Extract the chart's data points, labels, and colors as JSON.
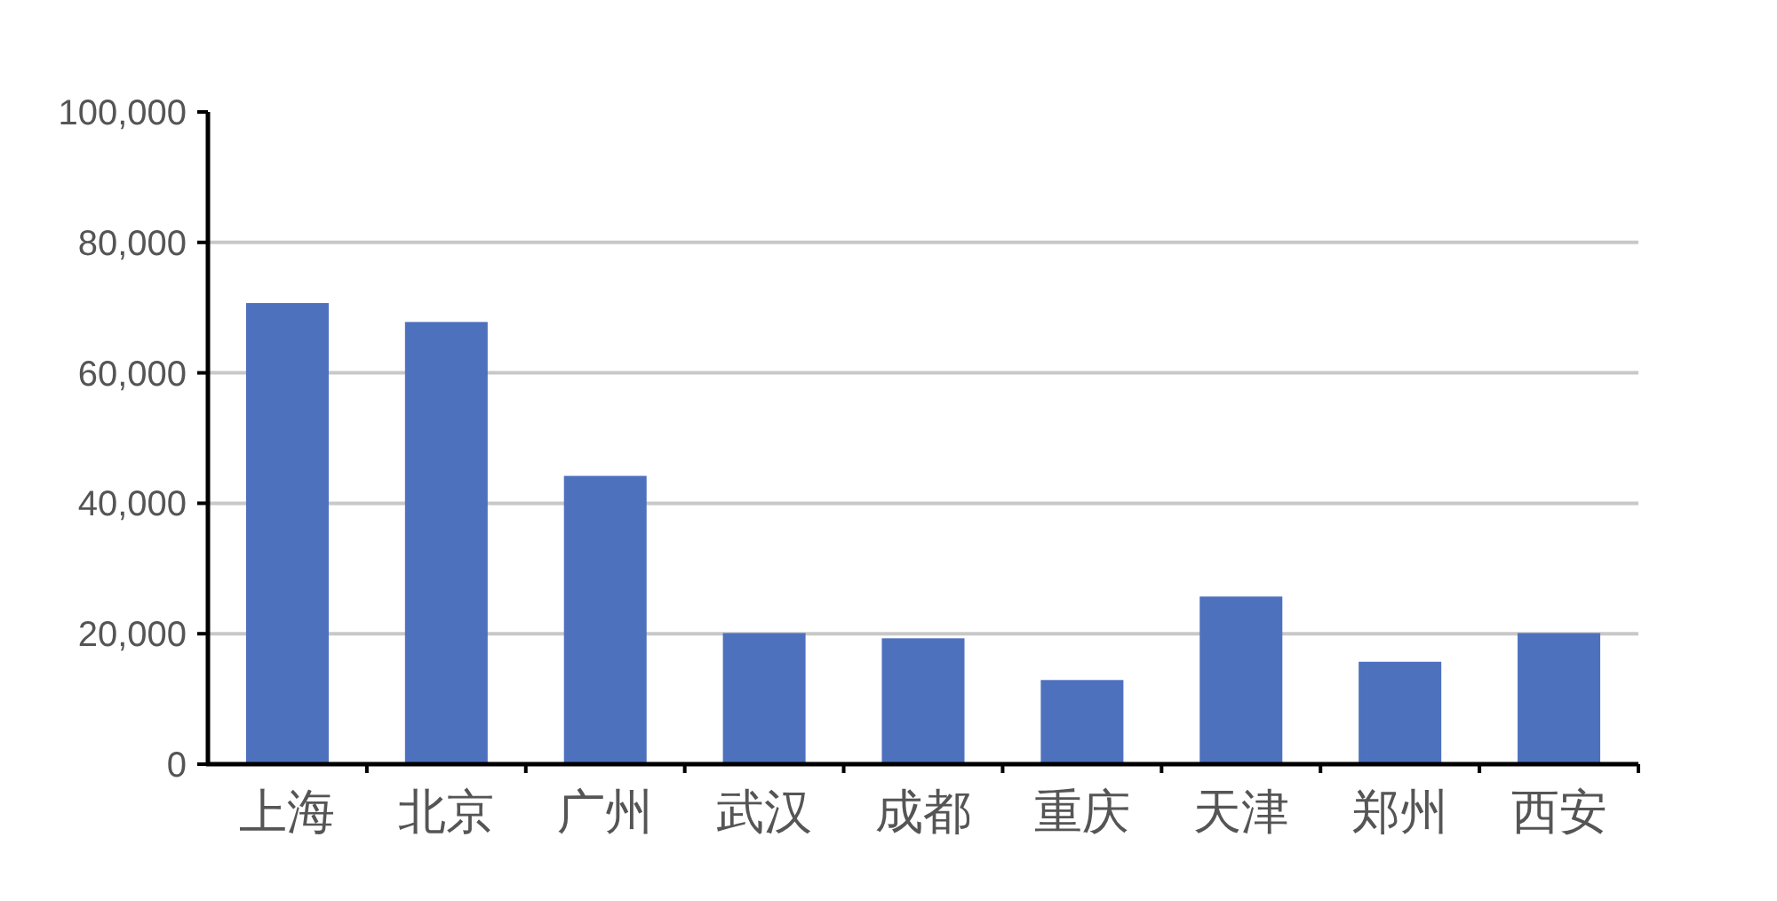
{
  "chart_data": {
    "type": "bar",
    "categories": [
      "上海",
      "北京",
      "广州",
      "武汉",
      "成都",
      "重庆",
      "天津",
      "郑州",
      "西安"
    ],
    "values": [
      70700,
      67800,
      44200,
      20100,
      19300,
      12900,
      25700,
      15700,
      20100
    ],
    "color": "#4e71be",
    "ylim": [
      0,
      100000
    ],
    "yticks": [
      {
        "value": 0,
        "label": "0"
      },
      {
        "value": 20000,
        "label": "20,000"
      },
      {
        "value": 40000,
        "label": "40,000"
      },
      {
        "value": 60000,
        "label": "60,000"
      },
      {
        "value": 80000,
        "label": "80,000"
      },
      {
        "value": 100000,
        "label": "100,000"
      }
    ],
    "grid": "y"
  }
}
